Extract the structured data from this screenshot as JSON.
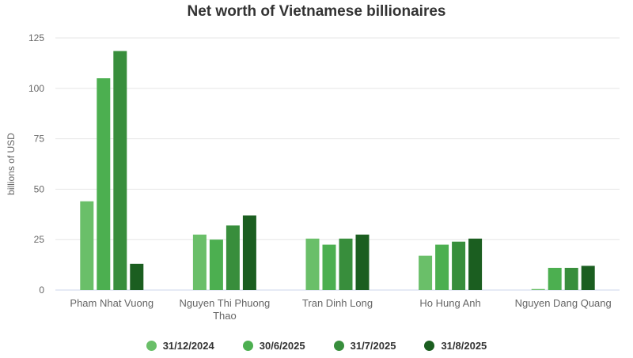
{
  "chart_data": {
    "type": "bar",
    "title": "Net worth of Vietnamese billionaires",
    "ylabel": "billions of USD",
    "xlabel": "",
    "ylim": [
      0,
      125
    ],
    "yticks": [
      0,
      25,
      50,
      75,
      100,
      125
    ],
    "grid": true,
    "legend_position": "bottom",
    "categories": [
      [
        "Pham Nhat Vuong"
      ],
      [
        "Nguyen Thi Phuong",
        "Thao"
      ],
      [
        "Tran Dinh Long"
      ],
      [
        "Ho Hung Anh"
      ],
      [
        "Nguyen Dang Quang"
      ]
    ],
    "series": [
      {
        "name": "31/12/2024",
        "color": "#6abf69",
        "values": [
          44,
          27.5,
          25.5,
          17,
          0.5
        ]
      },
      {
        "name": "30/6/2025",
        "color": "#4caf50",
        "values": [
          105,
          25,
          22.5,
          22.5,
          11
        ]
      },
      {
        "name": "31/7/2025",
        "color": "#388e3c",
        "values": [
          118.5,
          32,
          25.5,
          24,
          11
        ]
      },
      {
        "name": "31/8/2025",
        "color": "#1b5e20",
        "values": [
          13,
          37,
          27.5,
          25.5,
          12
        ]
      }
    ]
  }
}
